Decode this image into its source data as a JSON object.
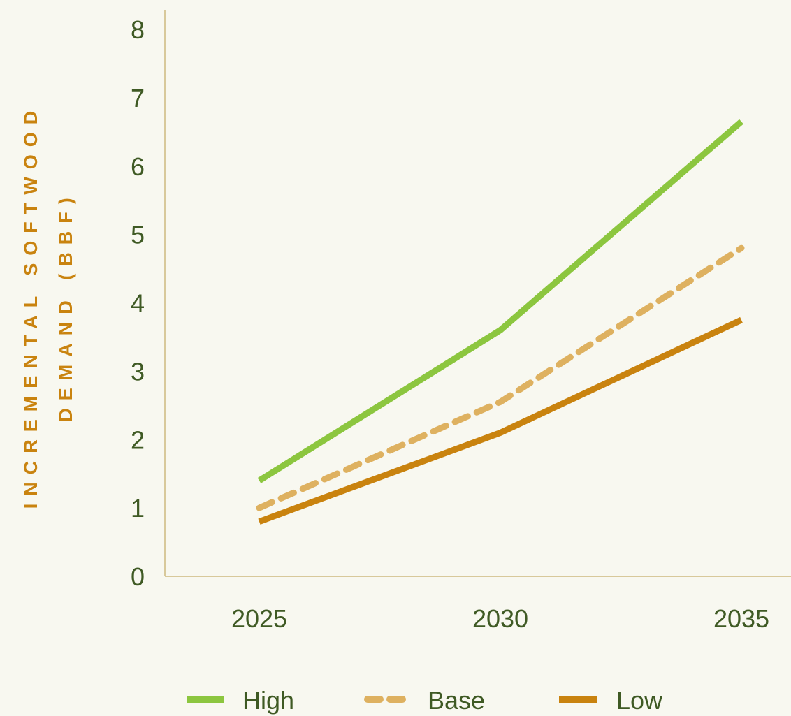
{
  "chart_data": {
    "type": "line",
    "x": [
      "2025",
      "2030",
      "2035"
    ],
    "series": [
      {
        "name": "High",
        "values": [
          1.4,
          3.6,
          6.65
        ],
        "color": "#8cc63f",
        "dash": "solid"
      },
      {
        "name": "Base",
        "values": [
          1.0,
          2.55,
          4.8
        ],
        "color": "#deb160",
        "dash": "dashed"
      },
      {
        "name": "Low",
        "values": [
          0.8,
          2.1,
          3.75
        ],
        "color": "#c9830f",
        "dash": "solid"
      }
    ],
    "ylabel_line1": "INCREMENTAL SOFTWOOD",
    "ylabel_line2": "DEMAND (BBF)",
    "ylim": [
      0,
      8
    ],
    "yticks": [
      "0",
      "1",
      "2",
      "3",
      "4",
      "5",
      "6",
      "7",
      "8"
    ],
    "grid": false,
    "legend_position": "bottom"
  },
  "colors": {
    "background": "#f8f8f0",
    "axis": "#d8c99b",
    "tick_text": "#3f5a24",
    "ylabel": "#c9830f"
  }
}
